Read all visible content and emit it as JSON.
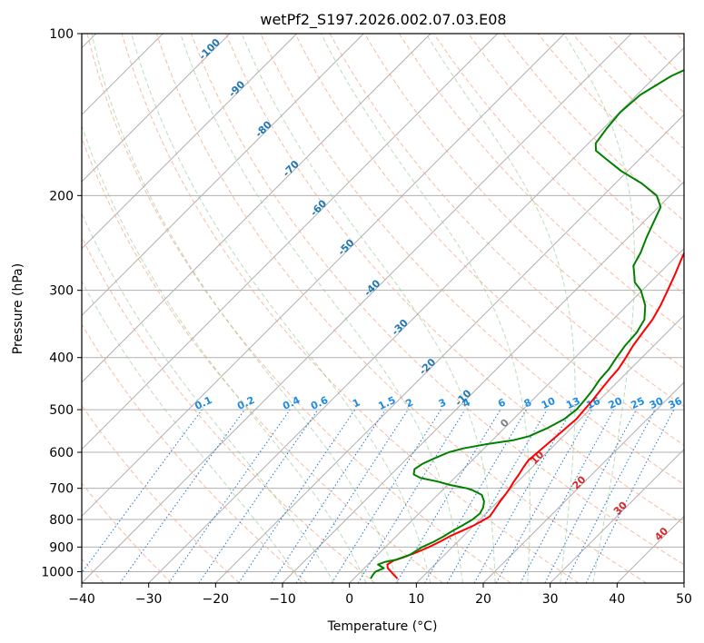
{
  "chart_data": {
    "type": "line",
    "title": "wetPf2_S197.2026.002.07.03.E08",
    "xlabel": "Temperature (°C)",
    "ylabel": "Pressure (hPa)",
    "xlim": [
      -40,
      50
    ],
    "ylim": [
      1050,
      100
    ],
    "x_ticks": [
      "−40",
      "−30",
      "−20",
      "−10",
      "0",
      "10",
      "20",
      "30",
      "40",
      "50"
    ],
    "x_tick_values": [
      -40,
      -30,
      -20,
      -10,
      0,
      10,
      20,
      30,
      40,
      50
    ],
    "y_ticks": [
      "100",
      "200",
      "300",
      "400",
      "500",
      "600",
      "700",
      "800",
      "900",
      "1000"
    ],
    "y_tick_values": [
      100,
      200,
      300,
      400,
      500,
      600,
      700,
      800,
      900,
      1000
    ],
    "grid": true,
    "skew_degrees": 45,
    "dry_adiabats_c": [
      -40,
      -30,
      -20,
      -10,
      0,
      10,
      20,
      30,
      40,
      50,
      60,
      70,
      80,
      90,
      100,
      110,
      120,
      130,
      140,
      150,
      160,
      170,
      180,
      190
    ],
    "moist_adiabats_c": [
      -10,
      -5,
      0,
      5,
      10,
      15,
      20,
      25,
      30,
      35
    ],
    "mixing_ratios": [
      0.1,
      0.2,
      0.4,
      0.6,
      1,
      1.5,
      2,
      3,
      4,
      6,
      8,
      10,
      13,
      16,
      20,
      25,
      30,
      36
    ],
    "mixing_ratio_labels": [
      "0.1",
      "0.2",
      "0.4",
      "0.6",
      "1",
      "1.5",
      "2",
      "3",
      "4",
      "6",
      "8",
      "10",
      "13",
      "16",
      "20",
      "25",
      "30",
      "36"
    ],
    "blue_isotherm_values": [
      -100,
      -90,
      -80,
      -70,
      -60,
      -50,
      -40,
      -30,
      -20,
      -10
    ],
    "blue_isotherm_labels": [
      "-100",
      "-90",
      "-80",
      "-70",
      "-60",
      "-50",
      "-40",
      "-30",
      "-20",
      "-10"
    ],
    "gray_isotherm_value": 0,
    "gray_isotherm_label": "0",
    "red_isotherm_values": [
      10,
      20,
      30,
      40
    ],
    "red_isotherm_labels": [
      "10",
      "20",
      "30",
      "40"
    ],
    "series": [
      {
        "name": "Temperature",
        "color": "#ff0000",
        "points": [
          [
            1030,
            6.5
          ],
          [
            1015,
            5.5
          ],
          [
            1000,
            4.5
          ],
          [
            985,
            3.5
          ],
          [
            970,
            2.9
          ],
          [
            955,
            3.2
          ],
          [
            940,
            4.3
          ],
          [
            920,
            5.5
          ],
          [
            900,
            6.5
          ],
          [
            880,
            7.3
          ],
          [
            860,
            8.0
          ],
          [
            840,
            9.0
          ],
          [
            820,
            10.0
          ],
          [
            800,
            10.7
          ],
          [
            790,
            11.0
          ],
          [
            780,
            10.9
          ],
          [
            760,
            10.6
          ],
          [
            740,
            10.3
          ],
          [
            720,
            10.1
          ],
          [
            700,
            9.8
          ],
          [
            680,
            9.4
          ],
          [
            660,
            9.1
          ],
          [
            640,
            8.7
          ],
          [
            620,
            8.4
          ],
          [
            600,
            8.6
          ],
          [
            580,
            8.8
          ],
          [
            560,
            9.0
          ],
          [
            540,
            9.2
          ],
          [
            520,
            9.4
          ],
          [
            500,
            9.2
          ],
          [
            480,
            9.0
          ],
          [
            460,
            8.7
          ],
          [
            440,
            8.4
          ],
          [
            420,
            8.2
          ],
          [
            400,
            7.6
          ],
          [
            380,
            6.9
          ],
          [
            360,
            6.4
          ],
          [
            340,
            5.9
          ],
          [
            320,
            5.0
          ],
          [
            300,
            3.8
          ],
          [
            280,
            2.5
          ],
          [
            260,
            1.0
          ],
          [
            240,
            -0.5
          ],
          [
            230,
            -1.4
          ],
          [
            220,
            -2.0
          ],
          [
            210,
            -2.8
          ],
          [
            200,
            -3.7
          ],
          [
            195,
            -3.9
          ],
          [
            190,
            -3.3
          ],
          [
            185,
            -2.2
          ],
          [
            180,
            0.0
          ],
          [
            175,
            2.6
          ],
          [
            170,
            5.2
          ],
          [
            160,
            9.8
          ],
          [
            150,
            14.0
          ],
          [
            140,
            17.9
          ],
          [
            130,
            21.0
          ],
          [
            124,
            22.6
          ],
          [
            118,
            25.0
          ],
          [
            112,
            28.2
          ],
          [
            106,
            31.0
          ],
          [
            100,
            33.5
          ]
        ]
      },
      {
        "name": "Dewpoint",
        "color": "#008000",
        "points": [
          [
            1030,
            2.5
          ],
          [
            1015,
            2.3
          ],
          [
            1000,
            2.2
          ],
          [
            985,
            2.9
          ],
          [
            970,
            1.5
          ],
          [
            960,
            2.1
          ],
          [
            950,
            3.5
          ],
          [
            930,
            4.8
          ],
          [
            900,
            5.5
          ],
          [
            880,
            6.4
          ],
          [
            860,
            7.1
          ],
          [
            840,
            7.6
          ],
          [
            820,
            8.3
          ],
          [
            800,
            8.9
          ],
          [
            780,
            9.1
          ],
          [
            760,
            8.7
          ],
          [
            740,
            7.9
          ],
          [
            720,
            6.6
          ],
          [
            705,
            4.4
          ],
          [
            700,
            3.4
          ],
          [
            690,
            0.4
          ],
          [
            680,
            -2.0
          ],
          [
            670,
            -5.0
          ],
          [
            660,
            -6.6
          ],
          [
            645,
            -7.3
          ],
          [
            630,
            -6.9
          ],
          [
            615,
            -5.9
          ],
          [
            600,
            -4.7
          ],
          [
            590,
            -3.1
          ],
          [
            580,
            -0.4
          ],
          [
            570,
            3.1
          ],
          [
            560,
            4.9
          ],
          [
            540,
            6.5
          ],
          [
            520,
            7.6
          ],
          [
            500,
            8.0
          ],
          [
            480,
            7.8
          ],
          [
            460,
            7.5
          ],
          [
            440,
            7.0
          ],
          [
            420,
            6.8
          ],
          [
            400,
            6.2
          ],
          [
            380,
            5.7
          ],
          [
            360,
            5.5
          ],
          [
            340,
            4.7
          ],
          [
            320,
            2.7
          ],
          [
            300,
            -0.2
          ],
          [
            290,
            -2.3
          ],
          [
            280,
            -3.6
          ],
          [
            270,
            -5.0
          ],
          [
            255,
            -5.9
          ],
          [
            240,
            -7.2
          ],
          [
            225,
            -8.4
          ],
          [
            210,
            -9.7
          ],
          [
            200,
            -12.0
          ],
          [
            190,
            -16.0
          ],
          [
            180,
            -21.0
          ],
          [
            170,
            -25.5
          ],
          [
            165,
            -27.8
          ],
          [
            160,
            -28.9
          ],
          [
            150,
            -29.5
          ],
          [
            140,
            -29.9
          ],
          [
            130,
            -29.5
          ],
          [
            120,
            -27.7
          ],
          [
            115,
            -26.0
          ],
          [
            110,
            -24.0
          ],
          [
            105,
            -22.5
          ],
          [
            100,
            -21.0
          ]
        ]
      }
    ]
  }
}
